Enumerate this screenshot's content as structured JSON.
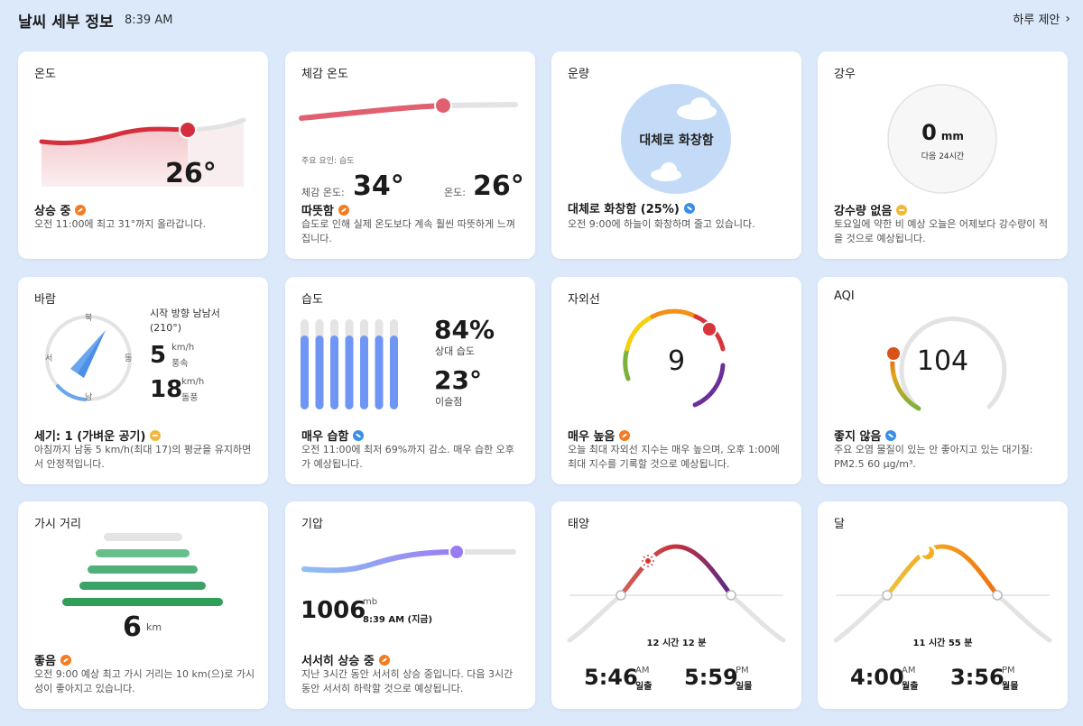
{
  "header": {
    "title": "날씨 세부 정보",
    "time": "8:39 AM",
    "link": "하루 제안"
  },
  "temperature": {
    "title": "온도",
    "value": "26°",
    "status": "상승 중",
    "desc": "오전 11:00에 최고 31°까지 올라갑니다."
  },
  "feels_like": {
    "title": "체감 온도",
    "factor": "주요 요인: 습도",
    "feels_label": "체감 온도:",
    "feels_value": "34°",
    "temp_label": "온도:",
    "temp_value": "26°",
    "status": "따뜻함",
    "desc": "습도로 인해 실제 온도보다 계속 훨씬 따뜻하게 느껴집니다."
  },
  "cloud": {
    "title": "운량",
    "center": "대체로 화창함",
    "status": "대체로 화창함 (25%)",
    "desc": "오전 9:00에 하늘이 화창하며 줄고 있습니다."
  },
  "rain": {
    "title": "강우",
    "value": "0",
    "unit": "mm",
    "sub": "다음 24시간",
    "status": "강수량 없음",
    "desc": "토요일에 약한 비 예상 오늘은 어제보다 강수량이 적을 것으로 예상됩니다."
  },
  "wind": {
    "title": "바람",
    "dir_text": "시작 방향 남남서 (210°)",
    "speed": "5",
    "speed_unit": "km/h",
    "speed_label": "풍속",
    "gust": "18",
    "gust_unit": "km/h",
    "gust_label": "돌풍",
    "n": "북",
    "s": "남",
    "e": "동",
    "w": "서",
    "direction_deg": 210,
    "status": "세기: 1 (가벼운 공기)",
    "desc": "아침까지 남동 5 km/h(최대 17)의 평균을 유지하면서 안정적입니다."
  },
  "humidity": {
    "title": "습도",
    "value": "84%",
    "value_label": "상대 습도",
    "dew": "23°",
    "dew_label": "이슬점",
    "bars": [
      0.82,
      0.82,
      0.82,
      0.82,
      0.82,
      0.82,
      0.82
    ],
    "status": "매우 습함",
    "desc": "오전 11:00에 최저 69%까지 감소. 매우 습한 오후가 예상됩니다."
  },
  "uv": {
    "title": "자외선",
    "value": "9",
    "status": "매우 높음",
    "desc": "오늘 최대 자외선 지수는 매우 높으며, 오후 1:00에 최대 지수를 기록할 것으로 예상됩니다."
  },
  "aqi": {
    "title": "AQI",
    "value": "104",
    "status": "좋지 않음",
    "desc": "주요 오염 물질이 있는 안 좋아지고 있는 대기질: PM2.5 60 μg/m³."
  },
  "visibility": {
    "title": "가시 거리",
    "value": "6",
    "unit": "km",
    "status": "좋음",
    "desc": "오전 9:00 예상 최고 가시 거리는 10 km(으)로 가시성이 좋아지고 있습니다."
  },
  "pressure": {
    "title": "기압",
    "value": "1006",
    "unit": "mb",
    "time": "8:39 AM (지금)",
    "status": "서서히 상승 중",
    "desc": "지난 3시간 동안 서서히 상승 중입니다. 다음 3시간 동안 서서히 하락할 것으로 예상됩니다."
  },
  "sun": {
    "title": "태양",
    "duration": "12 시간 12 분",
    "rise": "5:46",
    "rise_ampm": "AM",
    "rise_label": "일출",
    "set": "5:59",
    "set_ampm": "PM",
    "set_label": "일몰"
  },
  "moon": {
    "title": "달",
    "duration": "11 시간 55 분",
    "rise": "4:00",
    "rise_ampm": "AM",
    "rise_label": "월출",
    "set": "3:56",
    "set_ampm": "PM",
    "set_label": "월몰"
  },
  "colors": {
    "bg": "#dbe9fb",
    "temp": "#d32f3c",
    "pressure": "#9a7cf2",
    "humidity": "#6f95f5",
    "visibility": "#2f9e57",
    "sun": "#c4323c",
    "moon": "#f07b10"
  }
}
